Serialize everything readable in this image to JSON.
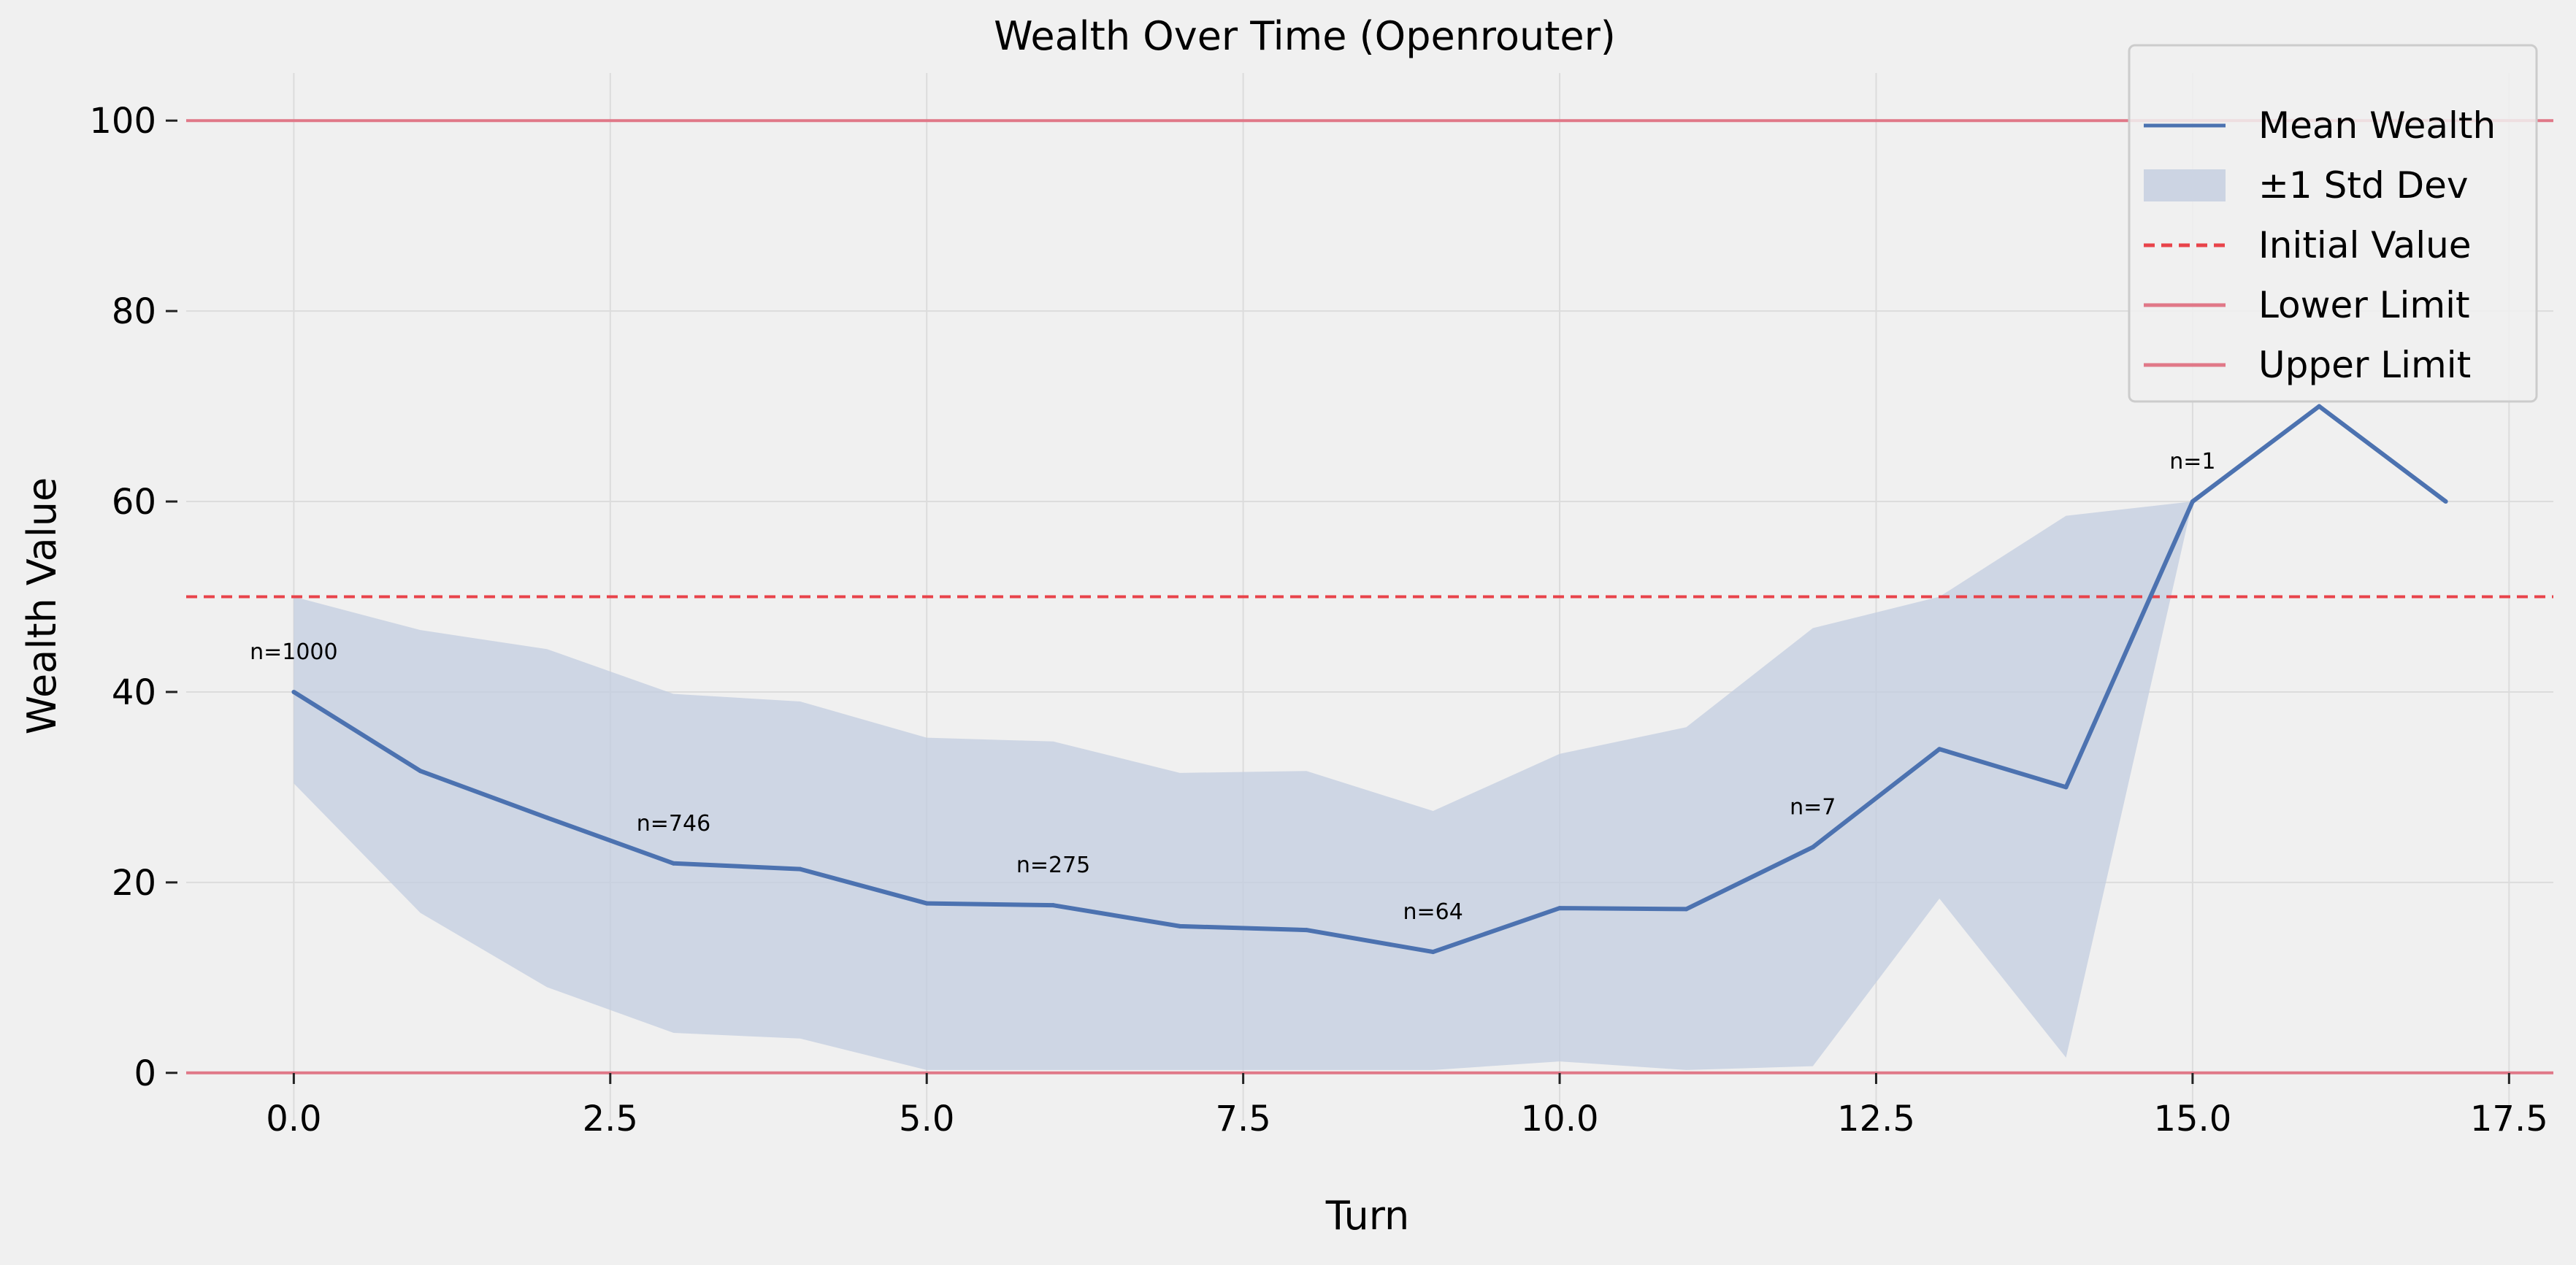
{
  "chart_data": {
    "type": "line",
    "title": "Wealth Over Time (Openrouter)",
    "xlabel": "Turn",
    "ylabel": "Wealth Value",
    "xlim": [
      -0.85,
      17.85
    ],
    "ylim": [
      -5,
      105
    ],
    "xticks": [
      0.0,
      2.5,
      5.0,
      7.5,
      10.0,
      12.5,
      15.0,
      17.5
    ],
    "xtick_labels": [
      "0.0",
      "2.5",
      "5.0",
      "7.5",
      "10.0",
      "12.5",
      "15.0",
      "17.5"
    ],
    "yticks": [
      0,
      20,
      40,
      60,
      80,
      100
    ],
    "ytick_labels": [
      "0",
      "20",
      "40",
      "60",
      "80",
      "100"
    ],
    "grid": true,
    "legend_position": "top-right",
    "colors": {
      "mean": "#4c72b0",
      "band": "#c3cde0",
      "initial": "#e8434a",
      "limit": "#e07888",
      "grid": "#dcdcdc",
      "legend_border": "#cccccc"
    },
    "series": [
      {
        "name": "Mean Wealth",
        "x": [
          0,
          1,
          2,
          3,
          4,
          5,
          6,
          7,
          8,
          9,
          10,
          11,
          12,
          13,
          14,
          15,
          16,
          17
        ],
        "values": [
          40.0,
          31.7,
          26.8,
          22.0,
          21.4,
          17.8,
          17.6,
          15.4,
          15.0,
          12.7,
          17.3,
          17.2,
          23.7,
          34.0,
          30.0,
          60.0,
          70.0,
          60.0
        ]
      },
      {
        "name": "±1 Std Dev",
        "x": [
          0,
          1,
          2,
          3,
          4,
          5,
          6,
          7,
          8,
          9,
          10,
          11,
          12,
          13,
          14,
          15
        ],
        "upper": [
          50.0,
          46.5,
          44.5,
          39.8,
          39.0,
          35.2,
          34.8,
          31.5,
          31.7,
          27.5,
          33.5,
          36.3,
          46.7,
          50.0,
          58.5,
          60.0
        ],
        "lower": [
          30.4,
          16.8,
          9.0,
          4.2,
          3.6,
          0.3,
          0.3,
          0.3,
          0.3,
          0.3,
          1.2,
          0.3,
          0.7,
          18.3,
          1.6,
          60.0
        ]
      }
    ],
    "reference_lines": [
      {
        "name": "Initial Value",
        "y": 50,
        "style": "dashed"
      },
      {
        "name": "Lower Limit",
        "y": 0,
        "style": "solid"
      },
      {
        "name": "Upper Limit",
        "y": 100,
        "style": "solid"
      }
    ],
    "annotations": [
      {
        "x": 0,
        "y": 40.0,
        "text": "n=1000"
      },
      {
        "x": 3,
        "y": 22.0,
        "text": "n=746"
      },
      {
        "x": 6,
        "y": 17.6,
        "text": "n=275"
      },
      {
        "x": 9,
        "y": 12.7,
        "text": "n=64"
      },
      {
        "x": 12,
        "y": 23.7,
        "text": "n=7"
      },
      {
        "x": 15,
        "y": 60.0,
        "text": "n=1"
      }
    ],
    "legend": [
      {
        "label": "Mean Wealth",
        "kind": "line",
        "color_key": "mean"
      },
      {
        "label": "±1 Std Dev",
        "kind": "patch",
        "color_key": "band"
      },
      {
        "label": "Initial Value",
        "kind": "dashed",
        "color_key": "initial"
      },
      {
        "label": "Lower Limit",
        "kind": "line",
        "color_key": "limit"
      },
      {
        "label": "Upper Limit",
        "kind": "line",
        "color_key": "limit"
      }
    ]
  }
}
